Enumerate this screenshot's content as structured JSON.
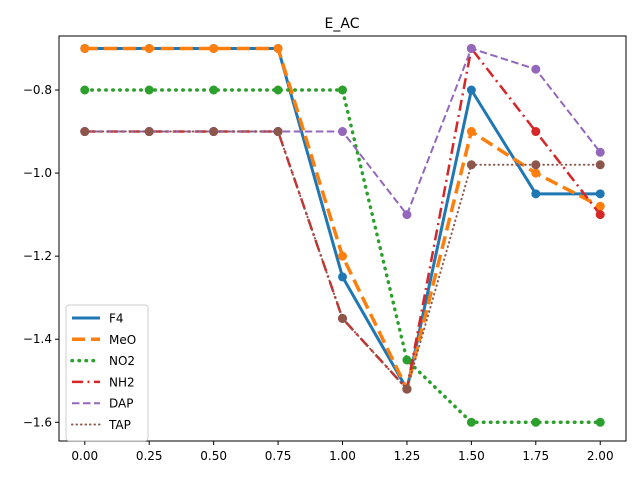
{
  "chart_data": {
    "type": "line",
    "title": "E_AC",
    "xlabel": "",
    "ylabel": "",
    "xlim": [
      -0.1,
      2.1
    ],
    "ylim": [
      -1.645,
      -0.67
    ],
    "xticks": [
      0.0,
      0.25,
      0.5,
      0.75,
      1.0,
      1.25,
      1.5,
      1.75,
      2.0
    ],
    "xtick_labels": [
      "0.00",
      "0.25",
      "0.50",
      "0.75",
      "1.00",
      "1.25",
      "1.50",
      "1.75",
      "2.00"
    ],
    "yticks": [
      -0.8,
      -1.0,
      -1.2,
      -1.4,
      -1.6
    ],
    "ytick_labels": [
      "−0.8",
      "−1.0",
      "−1.2",
      "−1.4",
      "−1.6"
    ],
    "grid": false,
    "legend_position": "lower-left",
    "x": [
      0.0,
      0.25,
      0.5,
      0.75,
      1.0,
      1.25,
      1.5,
      1.75,
      2.0
    ],
    "series": [
      {
        "name": "F4",
        "color": "#1f77b4",
        "style": "solid",
        "values": [
          -0.7,
          -0.7,
          -0.7,
          -0.7,
          -1.25,
          -1.52,
          -0.8,
          -1.05,
          -1.05
        ]
      },
      {
        "name": "MeO",
        "color": "#ff7f0e",
        "style": "dashed",
        "values": [
          -0.7,
          -0.7,
          -0.7,
          -0.7,
          -1.2,
          -1.52,
          -0.9,
          -1.0,
          -1.08
        ]
      },
      {
        "name": "NO2",
        "color": "#2ca02c",
        "style": "dotted",
        "values": [
          -0.8,
          -0.8,
          -0.8,
          -0.8,
          -0.8,
          -1.45,
          -1.6,
          -1.6,
          -1.6
        ]
      },
      {
        "name": "NH2",
        "color": "#d62728",
        "style": "dashdot",
        "values": [
          -0.9,
          -0.9,
          -0.9,
          -0.9,
          -1.35,
          -1.52,
          -0.7,
          -0.9,
          -1.1
        ]
      },
      {
        "name": "DAP",
        "color": "#9467bd",
        "style": "dashed",
        "values": [
          -0.9,
          -0.9,
          -0.9,
          -0.9,
          -0.9,
          -1.1,
          -0.7,
          -0.75,
          -0.95
        ]
      },
      {
        "name": "TAP",
        "color": "#8c564b",
        "style": "dotted",
        "values": [
          -0.9,
          -0.9,
          -0.9,
          -0.9,
          -1.35,
          -1.52,
          -0.98,
          -0.98,
          -0.98
        ]
      }
    ]
  }
}
